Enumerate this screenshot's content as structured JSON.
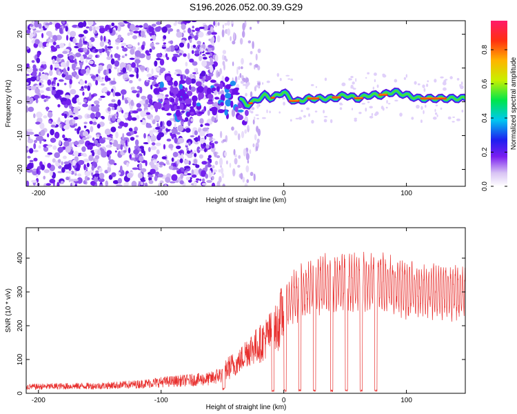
{
  "title": "S196.2026.052.00.39.G29",
  "chart_data": [
    {
      "type": "heatmap",
      "name": "spectrogram",
      "xlabel": "Height of straight line (km)",
      "ylabel": "Frequency (Hz)",
      "xlim": [
        -210,
        148
      ],
      "ylim": [
        -25,
        24
      ],
      "xticks": [
        -200,
        -100,
        0,
        100
      ],
      "yticks": [
        -20,
        -10,
        0,
        10,
        20
      ],
      "colorbar": {
        "label": "Normalized spectral amplitude",
        "range": [
          0,
          0.97
        ],
        "ticks": [
          0.0,
          0.2,
          0.4,
          0.6,
          0.8
        ]
      },
      "trace": [
        [
          -100,
          3
        ],
        [
          -95,
          2
        ],
        [
          -90,
          1
        ],
        [
          -80,
          0
        ],
        [
          -70,
          1
        ],
        [
          -60,
          2
        ],
        [
          -50,
          1
        ],
        [
          -40,
          2
        ],
        [
          -33,
          0
        ],
        [
          -30,
          -1
        ],
        [
          -25,
          0
        ],
        [
          -20,
          1
        ],
        [
          -15,
          2
        ],
        [
          -10,
          1
        ],
        [
          -5,
          2
        ],
        [
          0,
          3
        ],
        [
          5,
          1
        ],
        [
          10,
          0
        ],
        [
          20,
          1
        ],
        [
          30,
          1
        ],
        [
          40,
          1
        ],
        [
          50,
          2
        ],
        [
          60,
          1
        ],
        [
          70,
          2
        ],
        [
          80,
          2
        ],
        [
          90,
          3
        ],
        [
          100,
          2
        ],
        [
          110,
          1
        ],
        [
          120,
          1
        ],
        [
          130,
          1
        ],
        [
          148,
          1
        ]
      ]
    },
    {
      "type": "line",
      "name": "snr",
      "xlabel": "Height of straight line (km)",
      "ylabel": "SNR (10 * v/v)",
      "xlim": [
        -210,
        148
      ],
      "ylim": [
        0,
        490
      ],
      "xticks": [
        -200,
        -100,
        0,
        100
      ],
      "yticks": [
        0,
        100,
        200,
        300,
        400
      ],
      "series": [
        {
          "name": "SNR",
          "color": "#e8302e",
          "envelope": [
            [
              -210,
              20
            ],
            [
              -180,
              22
            ],
            [
              -150,
              23
            ],
            [
              -120,
              28
            ],
            [
              -100,
              35
            ],
            [
              -80,
              40
            ],
            [
              -60,
              45
            ],
            [
              -50,
              60
            ],
            [
              -45,
              80
            ],
            [
              -40,
              90
            ],
            [
              -35,
              110
            ],
            [
              -30,
              140
            ],
            [
              -25,
              150
            ],
            [
              -20,
              160
            ],
            [
              -15,
              180
            ],
            [
              -10,
              200
            ],
            [
              -5,
              220
            ],
            [
              0,
              280
            ],
            [
              5,
              320
            ],
            [
              10,
              340
            ],
            [
              15,
              350
            ],
            [
              20,
              360
            ],
            [
              30,
              375
            ],
            [
              40,
              380
            ],
            [
              60,
              385
            ],
            [
              80,
              390
            ],
            [
              90,
              370
            ],
            [
              100,
              360
            ],
            [
              120,
              355
            ],
            [
              148,
              350
            ]
          ],
          "dropouts": [
            [
              -50,
              -48,
              10
            ],
            [
              -10,
              -8,
              5
            ],
            [
              0,
              2,
              5
            ],
            [
              12,
              14,
              5
            ],
            [
              24,
              26,
              5
            ],
            [
              38,
              40,
              5
            ],
            [
              50,
              52,
              5
            ],
            [
              62,
              64,
              5
            ],
            [
              74,
              76,
              5
            ]
          ]
        }
      ]
    }
  ]
}
